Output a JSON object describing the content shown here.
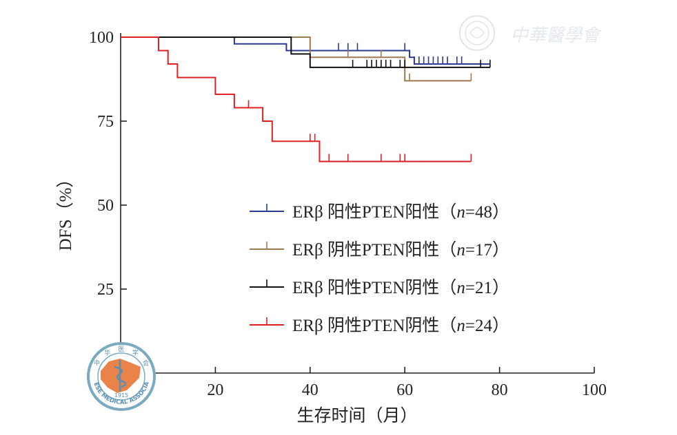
{
  "chart_data": {
    "type": "line",
    "step": true,
    "xlabel": "生存时间（月）",
    "ylabel": "DFS（%）",
    "xlim": [
      0,
      100
    ],
    "ylim": [
      0,
      100
    ],
    "xticks": [
      "0",
      "20",
      "40",
      "60",
      "80",
      "100"
    ],
    "yticks": [
      "25",
      "50",
      "75",
      "100"
    ],
    "grid": false,
    "legend_position": "center-right",
    "series": [
      {
        "name": "ERβ 阳性PTEN阳性（n=48）",
        "legend_parts": [
          "ERβ 阳性PTEN阳性（",
          "n",
          "=48）"
        ],
        "color": "#2b3990",
        "points": [
          [
            0,
            100
          ],
          [
            24,
            100
          ],
          [
            24,
            98
          ],
          [
            35,
            98
          ],
          [
            35,
            96
          ],
          [
            61,
            96
          ],
          [
            61,
            94
          ],
          [
            62,
            94
          ],
          [
            62,
            92
          ],
          [
            78,
            92
          ]
        ],
        "censored": [
          [
            46,
            96
          ],
          [
            48,
            96
          ],
          [
            50,
            96
          ],
          [
            60,
            96
          ],
          [
            61,
            94
          ],
          [
            62,
            92
          ],
          [
            63,
            92
          ],
          [
            64,
            92
          ],
          [
            65,
            92
          ],
          [
            66,
            92
          ],
          [
            67,
            92
          ],
          [
            68,
            92
          ],
          [
            69,
            92
          ],
          [
            71,
            92
          ],
          [
            72,
            92
          ]
        ]
      },
      {
        "name": "ERβ 阴性PTEN阳性（n=17）",
        "legend_parts": [
          "ERβ 阴性PTEN阳性（",
          "n",
          "=17）"
        ],
        "color": "#a07850",
        "points": [
          [
            0,
            100
          ],
          [
            40,
            100
          ],
          [
            40,
            94
          ],
          [
            60,
            94
          ],
          [
            60,
            87
          ],
          [
            74,
            87
          ]
        ],
        "censored": [
          [
            48,
            94
          ],
          [
            55,
            94
          ],
          [
            61,
            87
          ],
          [
            74,
            87
          ]
        ]
      },
      {
        "name": "ERβ 阳性PTEN阴性（n=21）",
        "legend_parts": [
          "ERβ 阳性PTEN阴性（",
          "n",
          "=21）"
        ],
        "color": "#111111",
        "points": [
          [
            0,
            100
          ],
          [
            36,
            100
          ],
          [
            36,
            95
          ],
          [
            40,
            95
          ],
          [
            40,
            91
          ],
          [
            78,
            91
          ]
        ],
        "censored": [
          [
            36,
            95
          ],
          [
            49,
            91
          ],
          [
            52,
            91
          ],
          [
            53,
            91
          ],
          [
            54,
            91
          ],
          [
            55,
            91
          ],
          [
            56,
            91
          ],
          [
            57,
            91
          ],
          [
            59,
            91
          ],
          [
            60,
            91
          ],
          [
            76,
            91
          ],
          [
            78,
            91
          ]
        ]
      },
      {
        "name": "ERβ 阴性PTEN阴性（n=24）",
        "legend_parts": [
          "ERβ 阴性PTEN阴性（",
          "n",
          "=24）"
        ],
        "color": "#e02020",
        "points": [
          [
            0,
            100
          ],
          [
            8,
            100
          ],
          [
            8,
            96
          ],
          [
            10,
            96
          ],
          [
            10,
            92
          ],
          [
            12,
            92
          ],
          [
            12,
            88
          ],
          [
            20,
            88
          ],
          [
            20,
            83
          ],
          [
            24,
            83
          ],
          [
            24,
            79
          ],
          [
            30,
            79
          ],
          [
            30,
            75
          ],
          [
            32,
            75
          ],
          [
            32,
            69
          ],
          [
            42,
            69
          ],
          [
            42,
            63
          ],
          [
            74,
            63
          ]
        ],
        "censored": [
          [
            27,
            79
          ],
          [
            40,
            69
          ],
          [
            41,
            69
          ],
          [
            44,
            63
          ],
          [
            48,
            63
          ],
          [
            55,
            63
          ],
          [
            59,
            63
          ],
          [
            60,
            63
          ],
          [
            74,
            63
          ]
        ]
      }
    ]
  },
  "watermark": {
    "text": "中華醫學會",
    "seal_text_top": [
      "中",
      "华",
      "医",
      "学",
      "会"
    ],
    "seal_text_ring": "CHINESE MEDICAL ASSOCIATION",
    "seal_year": "1915",
    "seal_color": "#e8783a",
    "ring_color": "#7aa9c2"
  }
}
